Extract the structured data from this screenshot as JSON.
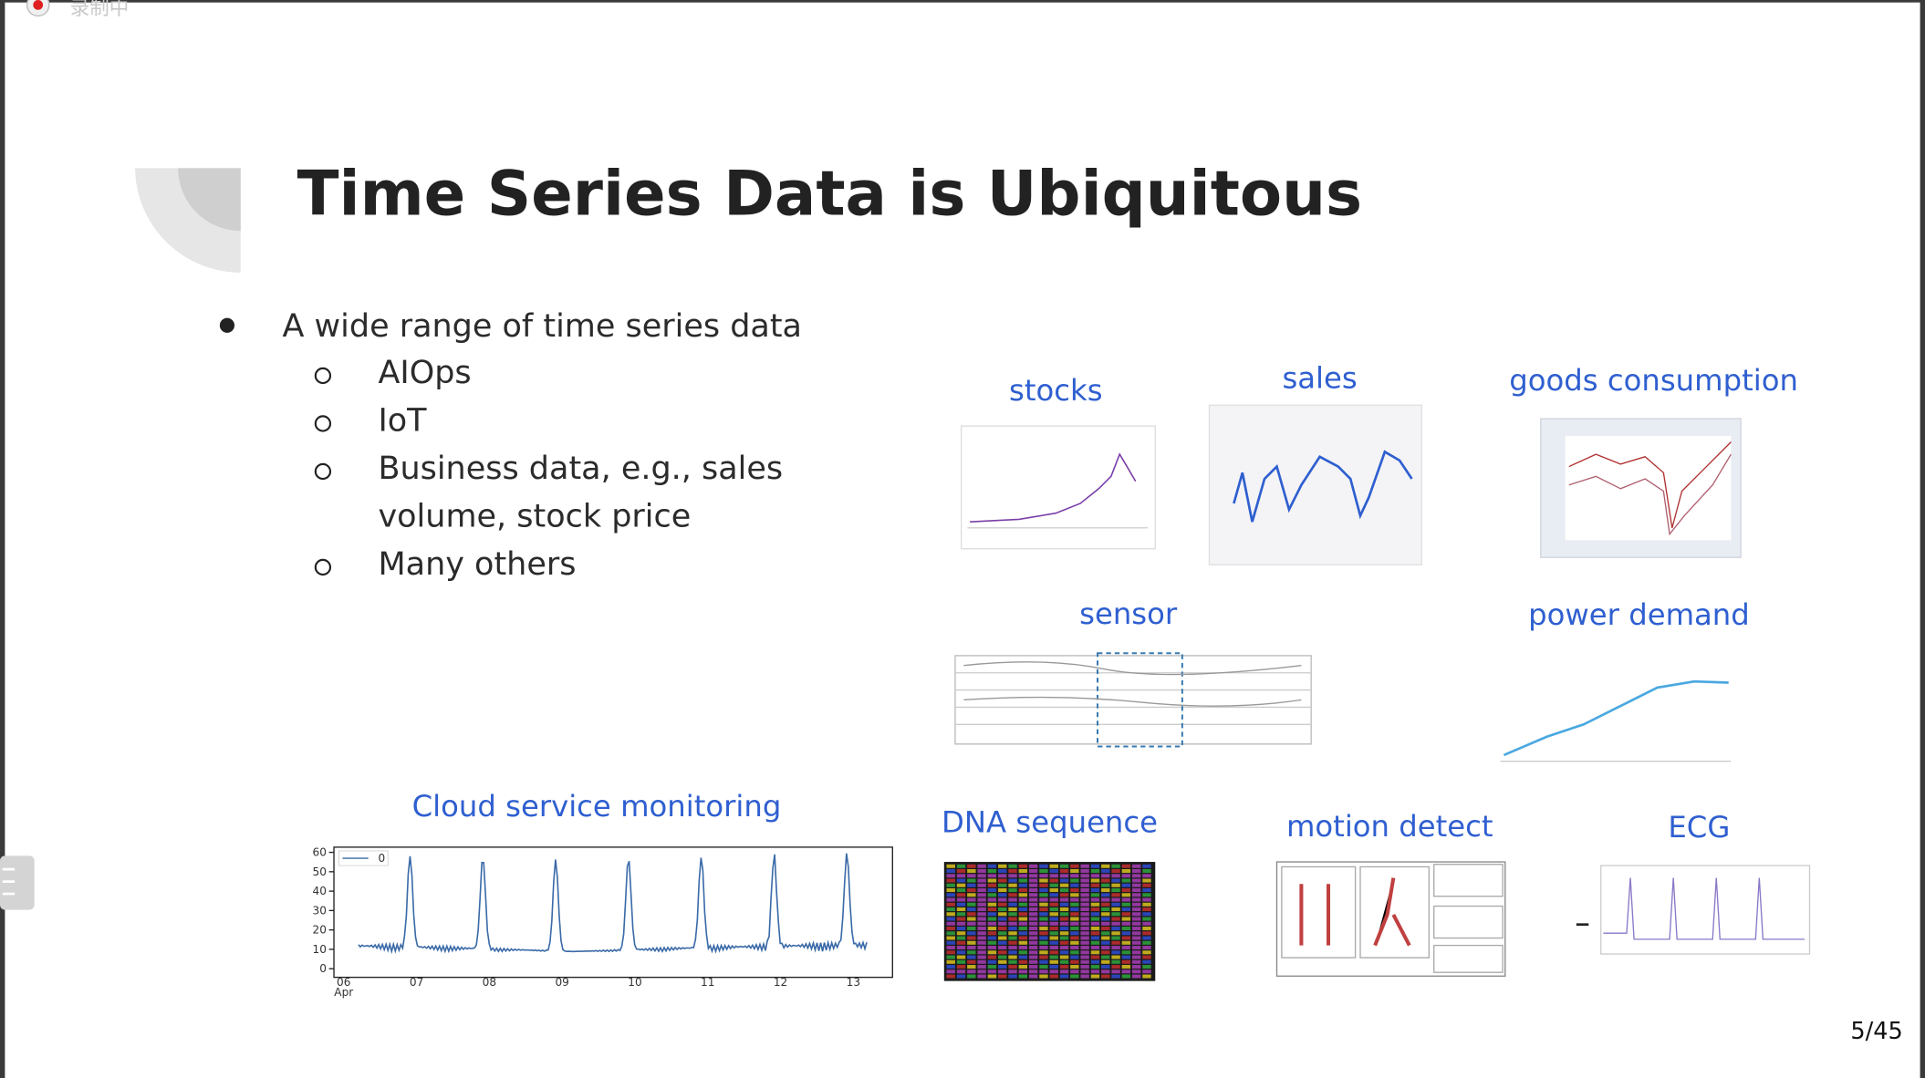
{
  "recording": "录制中",
  "slide": {
    "title": "Time Series Data is Ubiquitous",
    "bullet": "A wide range of time series data",
    "items": [
      [
        "AIOps"
      ],
      [
        "IoT"
      ],
      [
        "Business data, e.g., sales",
        "volume, stock price"
      ],
      [
        "Many others"
      ]
    ],
    "images": [
      "stocks",
      "sales",
      "goods consumption",
      "sensor",
      "power demand",
      "Cloud service monitoring",
      "DNA sequence",
      "motion detect",
      "ECG"
    ],
    "cloud_chart": {
      "legend": "0",
      "yticks": [
        "0",
        "10",
        "20",
        "30",
        "40",
        "50",
        "60"
      ],
      "xticks": [
        "06",
        "07",
        "08",
        "09",
        "10",
        "11",
        "12",
        "13"
      ],
      "xlabel": "Apr"
    },
    "page_number": "5/45"
  }
}
